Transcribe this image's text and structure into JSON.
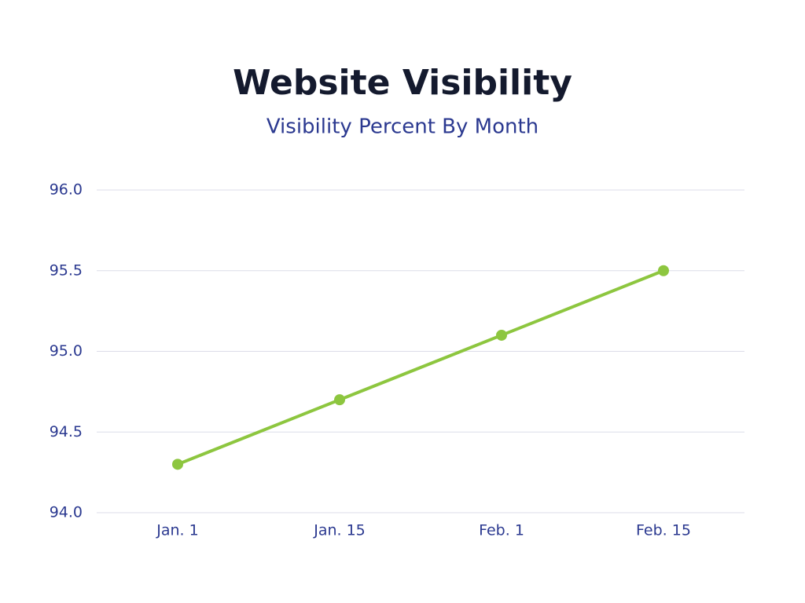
{
  "chart_data": {
    "type": "line",
    "title": "Website Visibility",
    "subtitle": "Visibility Percent By Month",
    "categories": [
      "Jan. 1",
      "Jan. 15",
      "Feb. 1",
      "Feb. 15"
    ],
    "values": [
      94.3,
      94.7,
      95.1,
      95.5
    ],
    "color": "#8dc63f",
    "ylim": [
      94,
      96
    ],
    "yticks": [
      {
        "value": 94,
        "label": "94.0"
      },
      94.5,
      {
        "value": 95,
        "label": "95.0"
      },
      95.5,
      {
        "value": 96,
        "label": "96.0"
      }
    ],
    "grid": true
  }
}
